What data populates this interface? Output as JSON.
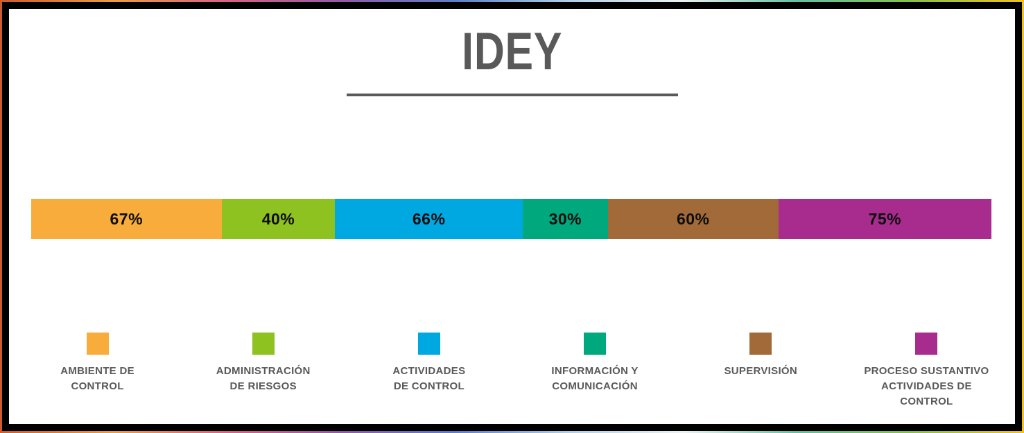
{
  "frame": {
    "border_color": "#000000",
    "canvas_background": "#FFFFFF",
    "gradient_colors": [
      "#CE5B2B",
      "#E99C43",
      "#D66189",
      "#9259A5",
      "#5B7EC7",
      "#AFCFE8",
      "#E9F2F2",
      "#62BFA4",
      "#86C048",
      "#F2C11E"
    ]
  },
  "chart_data": {
    "type": "bar",
    "variant": "horizontal-stacked-proportional",
    "title": "IDEY",
    "title_color": "#595959",
    "value_label_position": "inside-center",
    "legend_position": "bottom",
    "axes": "none",
    "grid": false,
    "categories": [
      "AMBIENTE DE CONTROL",
      "ADMINISTRACIÓN DE RIESGOS",
      "ACTIVIDADES DE CONTROL",
      "INFORMACIÓN Y COMUNICACIÓN",
      "SUPERVISIÓN",
      "PROCESO SUSTANTIVO ACTIVIDADES DE CONTROL"
    ],
    "values": [
      67,
      40,
      66,
      30,
      60,
      75
    ],
    "segments": [
      {
        "label": "AMBIENTE DE\nCONTROL",
        "value": 67,
        "value_label": "67%",
        "color": "#F7AC3B"
      },
      {
        "label": "ADMINISTRACIÓN\nDE RIESGOS",
        "value": 40,
        "value_label": "40%",
        "color": "#8EC220"
      },
      {
        "label": "ACTIVIDADES\nDE CONTROL",
        "value": 66,
        "value_label": "66%",
        "color": "#00A8E2"
      },
      {
        "label": "INFORMACIÓN Y\nCOMUNICACIÓN",
        "value": 30,
        "value_label": "30%",
        "color": "#00A97D"
      },
      {
        "label": "SUPERVISIÓN",
        "value": 60,
        "value_label": "60%",
        "color": "#A16A38"
      },
      {
        "label": "PROCESO SUSTANTIVO\nACTIVIDADES DE\nCONTROL",
        "value": 75,
        "value_label": "75%",
        "color": "#A82B8E"
      }
    ]
  }
}
